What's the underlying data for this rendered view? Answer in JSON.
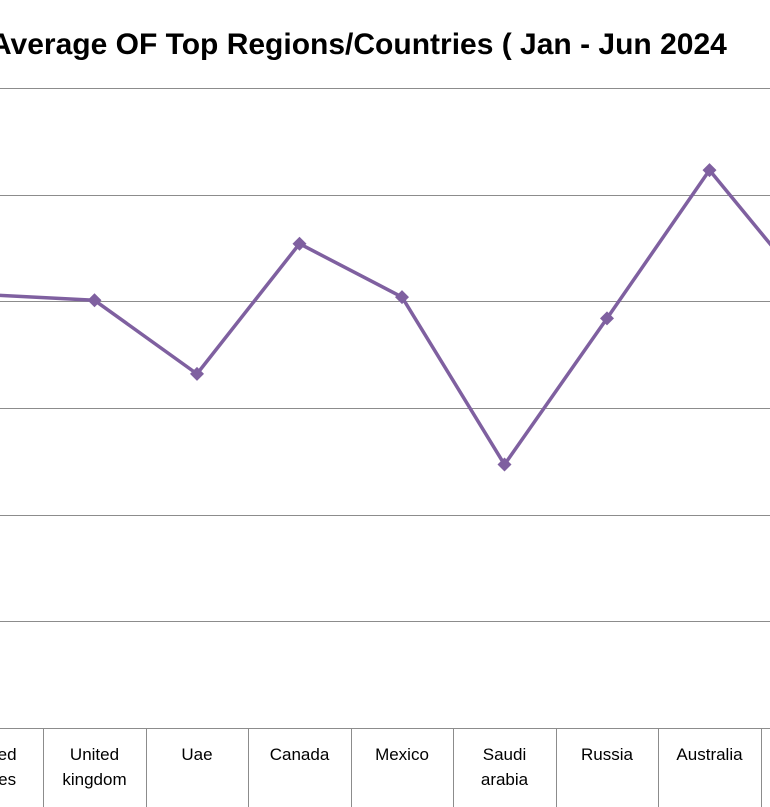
{
  "chart_data": {
    "type": "line",
    "title": "Average OF Top Regions/Countries ( Jan - Jun 2024",
    "xlabel": "",
    "ylabel": "",
    "categories": [
      [
        "United",
        "States"
      ],
      [
        "United",
        "kingdom"
      ],
      [
        "Uae"
      ],
      [
        "Canada"
      ],
      [
        "Mexico"
      ],
      [
        "Saudi",
        "arabia"
      ],
      [
        "Russia"
      ],
      [
        "Australia"
      ],
      [
        ""
      ]
    ],
    "series": [
      {
        "name": "",
        "color": "#7f60a0",
        "marker": "diamond",
        "values": [
          4.06,
          4.01,
          3.32,
          4.54,
          4.04,
          2.47,
          3.84,
          5.23,
          4.06
        ]
      }
    ],
    "ylim": [
      0,
      6
    ],
    "yticks": [
      0,
      1,
      2,
      3,
      4,
      5,
      6
    ],
    "grid": true,
    "legend": "none"
  }
}
